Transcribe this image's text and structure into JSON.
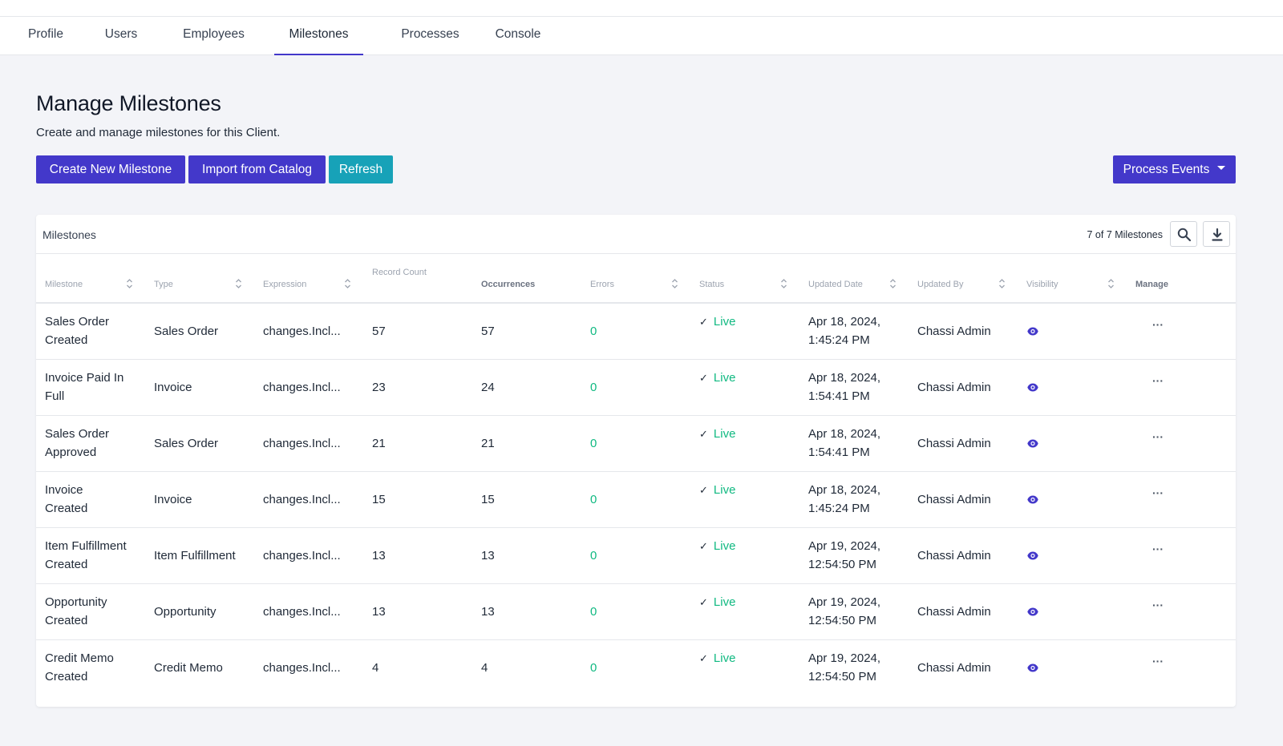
{
  "tabs": [
    {
      "label": "Profile"
    },
    {
      "label": "Users"
    },
    {
      "label": "Employees"
    },
    {
      "label": "Milestones"
    },
    {
      "label": "Processes"
    },
    {
      "label": "Console"
    }
  ],
  "page": {
    "title": "Manage Milestones",
    "subtitle": "Create and manage milestones for this Client."
  },
  "actions": {
    "create": "Create New Milestone",
    "import": "Import from Catalog",
    "refresh": "Refresh",
    "process_events": "Process Events"
  },
  "card": {
    "title": "Milestones",
    "count": "7 of 7 Milestones"
  },
  "columns": {
    "milestone": "Milestone",
    "type": "Type",
    "expression": "Expression",
    "record_count": "Record Count",
    "occurrences": "Occurrences",
    "errors": "Errors",
    "status": "Status",
    "updated_date": "Updated Date",
    "updated_by": "Updated By",
    "visibility": "Visibility",
    "manage": "Manage"
  },
  "rows": [
    {
      "name1": "Sales Order",
      "name2": "Created",
      "type": "Sales Order",
      "expression": "changes.Incl...",
      "record_count": "57",
      "occurrences": "57",
      "errors": "0",
      "status": "Live",
      "date1": "Apr 18, 2024,",
      "date2": "1:45:24 PM",
      "updated_by": "Chassi Admin",
      "more": "···"
    },
    {
      "name1": "Invoice Paid In",
      "name2": "Full",
      "type": "Invoice",
      "expression": "changes.Incl...",
      "record_count": "23",
      "occurrences": "24",
      "errors": "0",
      "status": "Live",
      "date1": "Apr 18, 2024,",
      "date2": "1:54:41 PM",
      "updated_by": "Chassi Admin",
      "more": "···"
    },
    {
      "name1": "Sales Order",
      "name2": "Approved",
      "type": "Sales Order",
      "expression": "changes.Incl...",
      "record_count": "21",
      "occurrences": "21",
      "errors": "0",
      "status": "Live",
      "date1": "Apr 18, 2024,",
      "date2": "1:54:41 PM",
      "updated_by": "Chassi Admin",
      "more": "···"
    },
    {
      "name1": "Invoice",
      "name2": "Created",
      "type": "Invoice",
      "expression": "changes.Incl...",
      "record_count": "15",
      "occurrences": "15",
      "errors": "0",
      "status": "Live",
      "date1": "Apr 18, 2024,",
      "date2": "1:45:24 PM",
      "updated_by": "Chassi Admin",
      "more": "···"
    },
    {
      "name1": "Item Fulfillment",
      "name2": "Created",
      "type": "Item Fulfillment",
      "expression": "changes.Incl...",
      "record_count": "13",
      "occurrences": "13",
      "errors": "0",
      "status": "Live",
      "date1": "Apr 19, 2024,",
      "date2": "12:54:50 PM",
      "updated_by": "Chassi Admin",
      "more": "···"
    },
    {
      "name1": "Opportunity",
      "name2": "Created",
      "type": "Opportunity",
      "expression": "changes.Incl...",
      "record_count": "13",
      "occurrences": "13",
      "errors": "0",
      "status": "Live",
      "date1": "Apr 19, 2024,",
      "date2": "12:54:50 PM",
      "updated_by": "Chassi Admin",
      "more": "···"
    },
    {
      "name1": "Credit Memo",
      "name2": "Created",
      "type": "Credit Memo",
      "expression": "changes.Incl...",
      "record_count": "4",
      "occurrences": "4",
      "errors": "0",
      "status": "Live",
      "date1": "Apr 19, 2024,",
      "date2": "12:54:50 PM",
      "updated_by": "Chassi Admin",
      "more": "···"
    }
  ],
  "colors": {
    "primary": "#4338ca",
    "teal": "#17a2b8",
    "success": "#10b981"
  },
  "icons": {
    "search": "search-icon",
    "download": "download-icon",
    "visibility": "eye-icon",
    "sort": "sort-icon",
    "status": "check-icon",
    "manage": "more-icon"
  }
}
